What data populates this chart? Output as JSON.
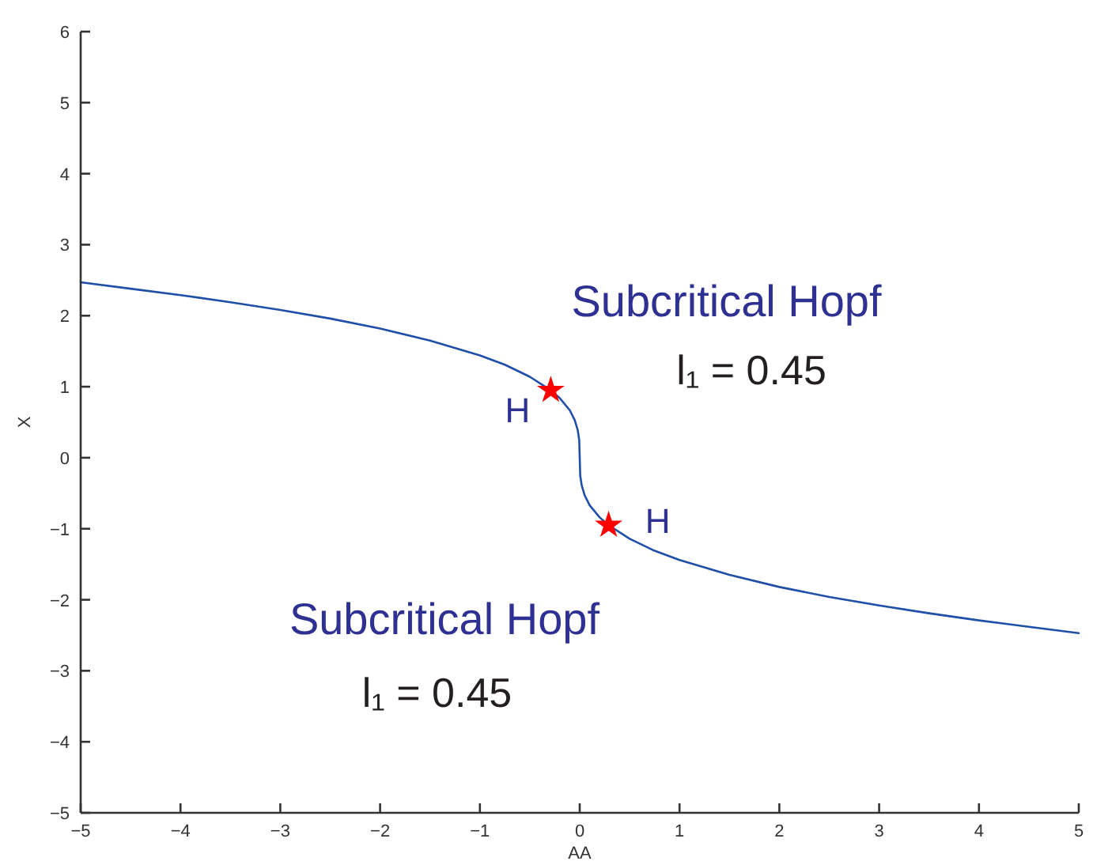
{
  "chart_data": {
    "type": "line",
    "xlabel": "AA",
    "ylabel": "X",
    "x": [
      -5,
      -4.5,
      -4,
      -3.5,
      -3,
      -2.5,
      -2,
      -1.5,
      -1,
      -0.75,
      -0.5,
      -0.29,
      -0.2,
      -0.1,
      -0.05,
      -0.02,
      -0.005,
      0,
      0.005,
      0.02,
      0.05,
      0.1,
      0.2,
      0.29,
      0.5,
      0.75,
      1,
      1.5,
      2,
      2.5,
      3,
      3.5,
      4,
      4.5,
      5
    ],
    "series": [
      {
        "color": "#1f4fa8",
        "line_style": "solid",
        "values": [
          2.47,
          2.38,
          2.29,
          2.19,
          2.08,
          1.96,
          1.82,
          1.65,
          1.44,
          1.31,
          1.14,
          0.95,
          0.84,
          0.67,
          0.53,
          0.39,
          0.25,
          0,
          -0.25,
          -0.39,
          -0.53,
          -0.67,
          -0.84,
          -0.95,
          -1.14,
          -1.31,
          -1.44,
          -1.65,
          -1.82,
          -1.96,
          -2.08,
          -2.19,
          -2.29,
          -2.38,
          -2.47
        ]
      },
      {
        "type": "scatter",
        "color": "#ff0000",
        "marker": "star",
        "x": [
          -0.29,
          0.29
        ],
        "values": [
          0.95,
          -0.95
        ]
      }
    ],
    "xlim": [
      -5,
      5
    ],
    "ylim": [
      -5,
      6
    ],
    "xticks": [
      -5,
      -4,
      -3,
      -2,
      -1,
      0,
      1,
      2,
      3,
      4,
      5
    ],
    "yticks": [
      -5,
      -4,
      -3,
      -2,
      -1,
      0,
      1,
      2,
      3,
      4,
      5,
      6
    ],
    "annotations": [
      "Subcritical Hopf",
      "l₁ = 0.45",
      {
        "text": "H",
        "x": -0.29,
        "y": 0.95
      },
      {
        "text": "H",
        "x": 0.29,
        "y": -0.95
      },
      "Subcritical Hopf",
      "l₁ = 0.45"
    ]
  }
}
